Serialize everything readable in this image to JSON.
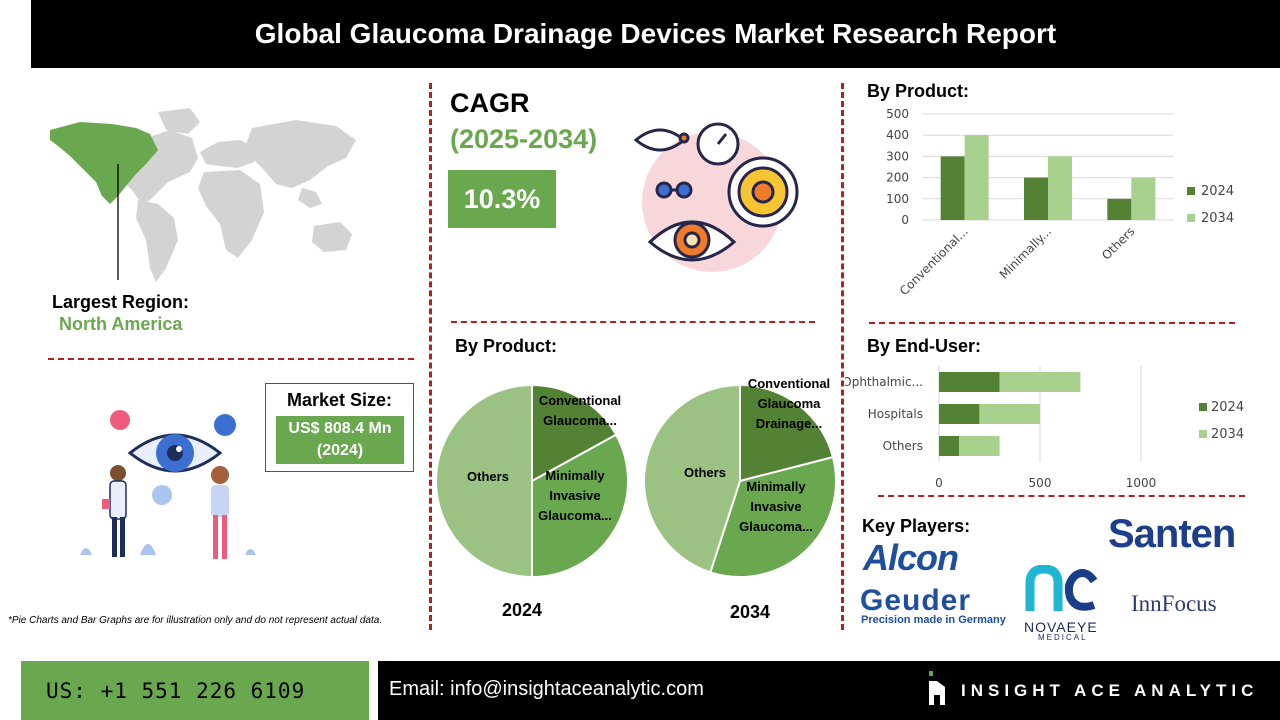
{
  "header": {
    "title": "Global Glaucoma Drainage Devices Market Research Report"
  },
  "cagr": {
    "label": "CAGR",
    "period": "(2025-2034)",
    "value": "10.3%"
  },
  "region": {
    "label": "Largest Region:",
    "value": "North America"
  },
  "market_size": {
    "label": "Market Size:",
    "value_line1": "US$ 808.4 Mn",
    "value_line2": "(2024)"
  },
  "sections": {
    "by_product_pie": "By Product:",
    "by_product_bar": "By Product:",
    "by_end_user": "By End-User:",
    "key_players": "Key Players:"
  },
  "footnote": "*Pie Charts and Bar Graphs are for illustration only and do not represent actual data.",
  "footer": {
    "phone": "US: +1 551 226 6109",
    "email": "Email: info@insightaceanalytic.com",
    "brand": "INSIGHT ACE ANALYTIC"
  },
  "key_players": {
    "alcon": "Alcon",
    "santen": "Santen",
    "geuder": "Geuder",
    "geuder_tagline": "Precision made in Germany",
    "novaeye": "NOVAEYE",
    "novaeye_sub": "MEDICAL",
    "innfocus": "InnFocus"
  },
  "colors": {
    "accent_green": "#6aa84f",
    "dark_green": "#548235",
    "light_green": "#a9d18e",
    "divider_red": "#b32020"
  },
  "chart_data": [
    {
      "type": "bar",
      "title": "By Product:",
      "categories": [
        "Conventional...",
        "Minimally...",
        "Others"
      ],
      "series": [
        {
          "name": "2024",
          "values": [
            300,
            200,
            100
          ]
        },
        {
          "name": "2034",
          "values": [
            400,
            300,
            200
          ]
        }
      ],
      "ylim": [
        0,
        500
      ],
      "yticks": [
        0,
        100,
        200,
        300,
        400,
        500
      ],
      "legend": "right",
      "grid": true
    },
    {
      "type": "bar",
      "orientation": "horizontal",
      "stacked": true,
      "title": "By End-User:",
      "categories": [
        "Ophthalmic...",
        "Hospitals",
        "Others"
      ],
      "series": [
        {
          "name": "2024",
          "values": [
            300,
            200,
            100
          ]
        },
        {
          "name": "2034",
          "values": [
            400,
            300,
            200
          ]
        }
      ],
      "xlim": [
        0,
        1000
      ],
      "xticks": [
        0,
        500,
        1000
      ],
      "legend": "right",
      "grid": true
    },
    {
      "type": "pie",
      "title": "2024",
      "slices": [
        {
          "label": "Conventional Glaucoma...",
          "value": 17
        },
        {
          "label": "Minimally Invasive Glaucoma...",
          "value": 33
        },
        {
          "label": "Others",
          "value": 50
        }
      ]
    },
    {
      "type": "pie",
      "title": "2034",
      "slices": [
        {
          "label": "Conventional Glaucoma Drainage...",
          "value": 21
        },
        {
          "label": "Minimally Invasive Glaucoma...",
          "value": 34
        },
        {
          "label": "Others",
          "value": 45
        }
      ]
    }
  ]
}
